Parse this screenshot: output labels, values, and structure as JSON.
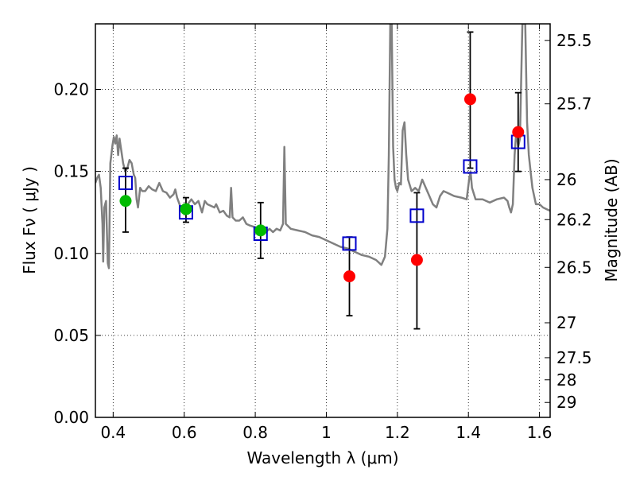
{
  "chart_data": {
    "type": "scatter",
    "xlabel": "Wavelength  λ (μm)",
    "ylabel": "Flux  Fν  ( μJy )",
    "y2label": "Magnitude (AB)",
    "xlim": [
      0.35,
      1.63
    ],
    "ylim": [
      0.0,
      0.24
    ],
    "grid": true,
    "x_ticks": [
      {
        "value": 0.4,
        "label": "0.4"
      },
      {
        "value": 0.6,
        "label": "0.6"
      },
      {
        "value": 0.8,
        "label": "0.8"
      },
      {
        "value": 1.0,
        "label": "1"
      },
      {
        "value": 1.2,
        "label": "1.2"
      },
      {
        "value": 1.4,
        "label": "1.4"
      },
      {
        "value": 1.6,
        "label": "1.6"
      }
    ],
    "y_ticks": [
      {
        "value": 0.0,
        "label": "0.00"
      },
      {
        "value": 0.05,
        "label": "0.05"
      },
      {
        "value": 0.1,
        "label": "0.10"
      },
      {
        "value": 0.15,
        "label": "0.15"
      },
      {
        "value": 0.2,
        "label": "0.20"
      }
    ],
    "y2_ticks": [
      {
        "label": "25.5",
        "flux": 0.2299
      },
      {
        "label": "25.7",
        "flux": 0.1912
      },
      {
        "label": "26",
        "flux": 0.145
      },
      {
        "label": "26.2",
        "flux": 0.1206
      },
      {
        "label": "26.5",
        "flux": 0.0915
      },
      {
        "label": "27",
        "flux": 0.0577
      },
      {
        "label": "27.5",
        "flux": 0.0364
      },
      {
        "label": "28",
        "flux": 0.0229
      },
      {
        "label": "29",
        "flux": 0.0091
      }
    ],
    "series": [
      {
        "kind": "line",
        "color": "#808080",
        "points": [
          [
            0.35,
            0.143
          ],
          [
            0.355,
            0.146
          ],
          [
            0.36,
            0.148
          ],
          [
            0.365,
            0.14
          ],
          [
            0.37,
            0.118
          ],
          [
            0.372,
            0.095
          ],
          [
            0.375,
            0.128
          ],
          [
            0.38,
            0.132
          ],
          [
            0.385,
            0.094
          ],
          [
            0.388,
            0.091
          ],
          [
            0.392,
            0.155
          ],
          [
            0.398,
            0.166
          ],
          [
            0.402,
            0.171
          ],
          [
            0.406,
            0.167
          ],
          [
            0.41,
            0.172
          ],
          [
            0.414,
            0.16
          ],
          [
            0.418,
            0.17
          ],
          [
            0.422,
            0.164
          ],
          [
            0.428,
            0.155
          ],
          [
            0.434,
            0.15
          ],
          [
            0.44,
            0.152
          ],
          [
            0.446,
            0.157
          ],
          [
            0.452,
            0.155
          ],
          [
            0.458,
            0.148
          ],
          [
            0.462,
            0.146
          ],
          [
            0.466,
            0.133
          ],
          [
            0.47,
            0.128
          ],
          [
            0.476,
            0.14
          ],
          [
            0.482,
            0.138
          ],
          [
            0.49,
            0.138
          ],
          [
            0.5,
            0.141
          ],
          [
            0.51,
            0.139
          ],
          [
            0.52,
            0.138
          ],
          [
            0.53,
            0.143
          ],
          [
            0.54,
            0.138
          ],
          [
            0.55,
            0.137
          ],
          [
            0.56,
            0.134
          ],
          [
            0.57,
            0.136
          ],
          [
            0.575,
            0.139
          ],
          [
            0.58,
            0.134
          ],
          [
            0.59,
            0.128
          ],
          [
            0.6,
            0.13
          ],
          [
            0.61,
            0.13
          ],
          [
            0.62,
            0.133
          ],
          [
            0.63,
            0.13
          ],
          [
            0.64,
            0.132
          ],
          [
            0.65,
            0.125
          ],
          [
            0.658,
            0.132
          ],
          [
            0.665,
            0.13
          ],
          [
            0.675,
            0.129
          ],
          [
            0.685,
            0.128
          ],
          [
            0.69,
            0.13
          ],
          [
            0.7,
            0.125
          ],
          [
            0.71,
            0.126
          ],
          [
            0.72,
            0.123
          ],
          [
            0.728,
            0.122
          ],
          [
            0.732,
            0.14
          ],
          [
            0.736,
            0.122
          ],
          [
            0.745,
            0.12
          ],
          [
            0.755,
            0.12
          ],
          [
            0.765,
            0.122
          ],
          [
            0.775,
            0.118
          ],
          [
            0.785,
            0.117
          ],
          [
            0.8,
            0.116
          ],
          [
            0.81,
            0.114
          ],
          [
            0.82,
            0.115
          ],
          [
            0.83,
            0.113
          ],
          [
            0.84,
            0.115
          ],
          [
            0.85,
            0.113
          ],
          [
            0.86,
            0.115
          ],
          [
            0.87,
            0.114
          ],
          [
            0.878,
            0.118
          ],
          [
            0.882,
            0.165
          ],
          [
            0.886,
            0.118
          ],
          [
            0.9,
            0.115
          ],
          [
            0.92,
            0.114
          ],
          [
            0.94,
            0.113
          ],
          [
            0.96,
            0.111
          ],
          [
            0.98,
            0.11
          ],
          [
            1.0,
            0.108
          ],
          [
            1.02,
            0.106
          ],
          [
            1.04,
            0.104
          ],
          [
            1.06,
            0.103
          ],
          [
            1.08,
            0.101
          ],
          [
            1.1,
            0.099
          ],
          [
            1.12,
            0.098
          ],
          [
            1.14,
            0.096
          ],
          [
            1.155,
            0.093
          ],
          [
            1.165,
            0.098
          ],
          [
            1.172,
            0.115
          ],
          [
            1.176,
            0.16
          ],
          [
            1.18,
            0.24
          ],
          [
            1.184,
            0.24
          ],
          [
            1.188,
            0.165
          ],
          [
            1.192,
            0.145
          ],
          [
            1.196,
            0.14
          ],
          [
            1.2,
            0.138
          ],
          [
            1.205,
            0.143
          ],
          [
            1.21,
            0.142
          ],
          [
            1.215,
            0.175
          ],
          [
            1.22,
            0.18
          ],
          [
            1.225,
            0.16
          ],
          [
            1.23,
            0.145
          ],
          [
            1.24,
            0.138
          ],
          [
            1.25,
            0.14
          ],
          [
            1.26,
            0.138
          ],
          [
            1.27,
            0.145
          ],
          [
            1.28,
            0.14
          ],
          [
            1.29,
            0.135
          ],
          [
            1.3,
            0.13
          ],
          [
            1.31,
            0.128
          ],
          [
            1.32,
            0.135
          ],
          [
            1.33,
            0.138
          ],
          [
            1.34,
            0.137
          ],
          [
            1.36,
            0.135
          ],
          [
            1.38,
            0.134
          ],
          [
            1.395,
            0.133
          ],
          [
            1.402,
            0.145
          ],
          [
            1.406,
            0.15
          ],
          [
            1.41,
            0.14
          ],
          [
            1.42,
            0.133
          ],
          [
            1.44,
            0.133
          ],
          [
            1.46,
            0.131
          ],
          [
            1.48,
            0.133
          ],
          [
            1.5,
            0.134
          ],
          [
            1.51,
            0.132
          ],
          [
            1.515,
            0.128
          ],
          [
            1.52,
            0.125
          ],
          [
            1.525,
            0.13
          ],
          [
            1.53,
            0.16
          ],
          [
            1.535,
            0.175
          ],
          [
            1.54,
            0.165
          ],
          [
            1.545,
            0.17
          ],
          [
            1.552,
            0.24
          ],
          [
            1.56,
            0.24
          ],
          [
            1.565,
            0.18
          ],
          [
            1.57,
            0.16
          ],
          [
            1.575,
            0.15
          ],
          [
            1.58,
            0.14
          ],
          [
            1.59,
            0.13
          ],
          [
            1.6,
            0.13
          ],
          [
            1.61,
            0.128
          ],
          [
            1.62,
            0.127
          ],
          [
            1.63,
            0.126
          ]
        ]
      },
      {
        "kind": "markers",
        "marker": "square",
        "color": "#0000cc",
        "points": [
          [
            0.435,
            0.143
          ],
          [
            0.605,
            0.125
          ],
          [
            0.815,
            0.112
          ],
          [
            1.065,
            0.106
          ],
          [
            1.255,
            0.123
          ],
          [
            1.405,
            0.153
          ],
          [
            1.54,
            0.168
          ]
        ]
      },
      {
        "kind": "markers",
        "marker": "circle",
        "color": "#00bb00",
        "points": [
          {
            "x": 0.435,
            "y": 0.132,
            "yerr": [
              0.113,
              0.152
            ]
          },
          {
            "x": 0.605,
            "y": 0.127,
            "yerr": [
              0.119,
              0.134
            ]
          },
          {
            "x": 0.815,
            "y": 0.114,
            "yerr": [
              0.097,
              0.131
            ]
          }
        ]
      },
      {
        "kind": "markers",
        "marker": "circle",
        "color": "#ff0000",
        "points": [
          {
            "x": 1.065,
            "y": 0.086,
            "yerr": [
              0.062,
              0.11
            ]
          },
          {
            "x": 1.255,
            "y": 0.096,
            "yerr": [
              0.054,
              0.137
            ]
          },
          {
            "x": 1.405,
            "y": 0.194,
            "yerr": [
              0.152,
              0.235
            ]
          },
          {
            "x": 1.54,
            "y": 0.174,
            "yerr": [
              0.15,
              0.198
            ]
          }
        ]
      }
    ]
  }
}
